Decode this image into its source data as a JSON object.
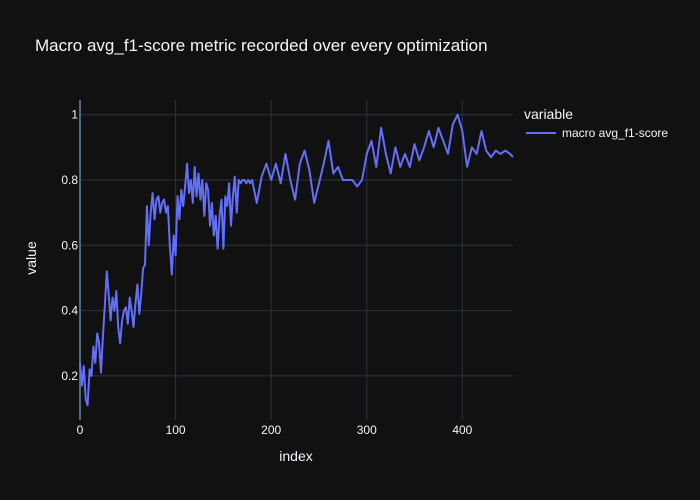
{
  "chart_data": {
    "type": "line",
    "title": "Macro avg_f1-score metric recorded over every optimization",
    "xlabel": "index",
    "ylabel": "value",
    "xlim": [
      0,
      453
    ],
    "ylim": [
      0.065,
      1.045
    ],
    "x_ticks": [
      0,
      100,
      200,
      300,
      400
    ],
    "y_ticks": [
      0.2,
      0.4,
      0.6,
      0.8,
      1
    ],
    "x_tick_labels": [
      "0",
      "100",
      "200",
      "300",
      "400"
    ],
    "y_tick_labels": [
      "0.2",
      "0.4",
      "0.6",
      "0.8",
      "1"
    ],
    "grid": true,
    "legend_placement": "top-right",
    "legend_title": "variable",
    "series": [
      {
        "name": "macro avg_f1-score",
        "color": "#636efa",
        "x": [
          0,
          2,
          4,
          6,
          8,
          10,
          12,
          14,
          16,
          18,
          20,
          22,
          24,
          26,
          28,
          30,
          32,
          34,
          36,
          38,
          40,
          42,
          44,
          46,
          48,
          50,
          52,
          54,
          56,
          58,
          60,
          62,
          64,
          66,
          68,
          70,
          72,
          74,
          76,
          78,
          80,
          82,
          84,
          86,
          88,
          90,
          92,
          94,
          96,
          98,
          100,
          102,
          104,
          106,
          108,
          110,
          112,
          114,
          116,
          118,
          120,
          122,
          124,
          126,
          128,
          130,
          132,
          134,
          136,
          138,
          140,
          142,
          144,
          146,
          148,
          150,
          152,
          154,
          156,
          158,
          160,
          162,
          164,
          166,
          168,
          170,
          172,
          174,
          176,
          178,
          180,
          185,
          190,
          195,
          200,
          205,
          210,
          215,
          220,
          225,
          230,
          235,
          240,
          245,
          250,
          255,
          260,
          265,
          270,
          275,
          280,
          285,
          290,
          295,
          300,
          305,
          310,
          315,
          320,
          325,
          330,
          335,
          340,
          345,
          350,
          355,
          360,
          365,
          370,
          375,
          380,
          385,
          390,
          395,
          400,
          405,
          410,
          415,
          420,
          425,
          430,
          435,
          440,
          445,
          450,
          453
        ],
        "y": [
          0.24,
          0.17,
          0.23,
          0.13,
          0.11,
          0.22,
          0.2,
          0.29,
          0.24,
          0.33,
          0.3,
          0.21,
          0.32,
          0.42,
          0.52,
          0.45,
          0.37,
          0.44,
          0.4,
          0.46,
          0.35,
          0.3,
          0.37,
          0.4,
          0.41,
          0.36,
          0.44,
          0.4,
          0.35,
          0.42,
          0.48,
          0.39,
          0.45,
          0.53,
          0.54,
          0.72,
          0.6,
          0.7,
          0.76,
          0.68,
          0.74,
          0.75,
          0.7,
          0.73,
          0.74,
          0.7,
          0.72,
          0.6,
          0.51,
          0.63,
          0.57,
          0.75,
          0.68,
          0.77,
          0.72,
          0.78,
          0.85,
          0.76,
          0.8,
          0.73,
          0.84,
          0.75,
          0.82,
          0.74,
          0.8,
          0.69,
          0.79,
          0.77,
          0.66,
          0.73,
          0.63,
          0.69,
          0.59,
          0.69,
          0.74,
          0.59,
          0.75,
          0.72,
          0.79,
          0.66,
          0.75,
          0.81,
          0.7,
          0.8,
          0.79,
          0.8,
          0.8,
          0.79,
          0.8,
          0.79,
          0.8,
          0.73,
          0.81,
          0.85,
          0.8,
          0.85,
          0.79,
          0.88,
          0.8,
          0.74,
          0.85,
          0.89,
          0.83,
          0.73,
          0.79,
          0.85,
          0.92,
          0.82,
          0.84,
          0.8,
          0.8,
          0.8,
          0.78,
          0.8,
          0.88,
          0.92,
          0.84,
          0.96,
          0.88,
          0.82,
          0.9,
          0.84,
          0.88,
          0.84,
          0.91,
          0.86,
          0.9,
          0.95,
          0.9,
          0.96,
          0.92,
          0.88,
          0.97,
          1.0,
          0.95,
          0.84,
          0.9,
          0.88,
          0.95,
          0.89,
          0.87,
          0.89,
          0.88,
          0.89,
          0.88,
          0.87
        ]
      }
    ]
  }
}
